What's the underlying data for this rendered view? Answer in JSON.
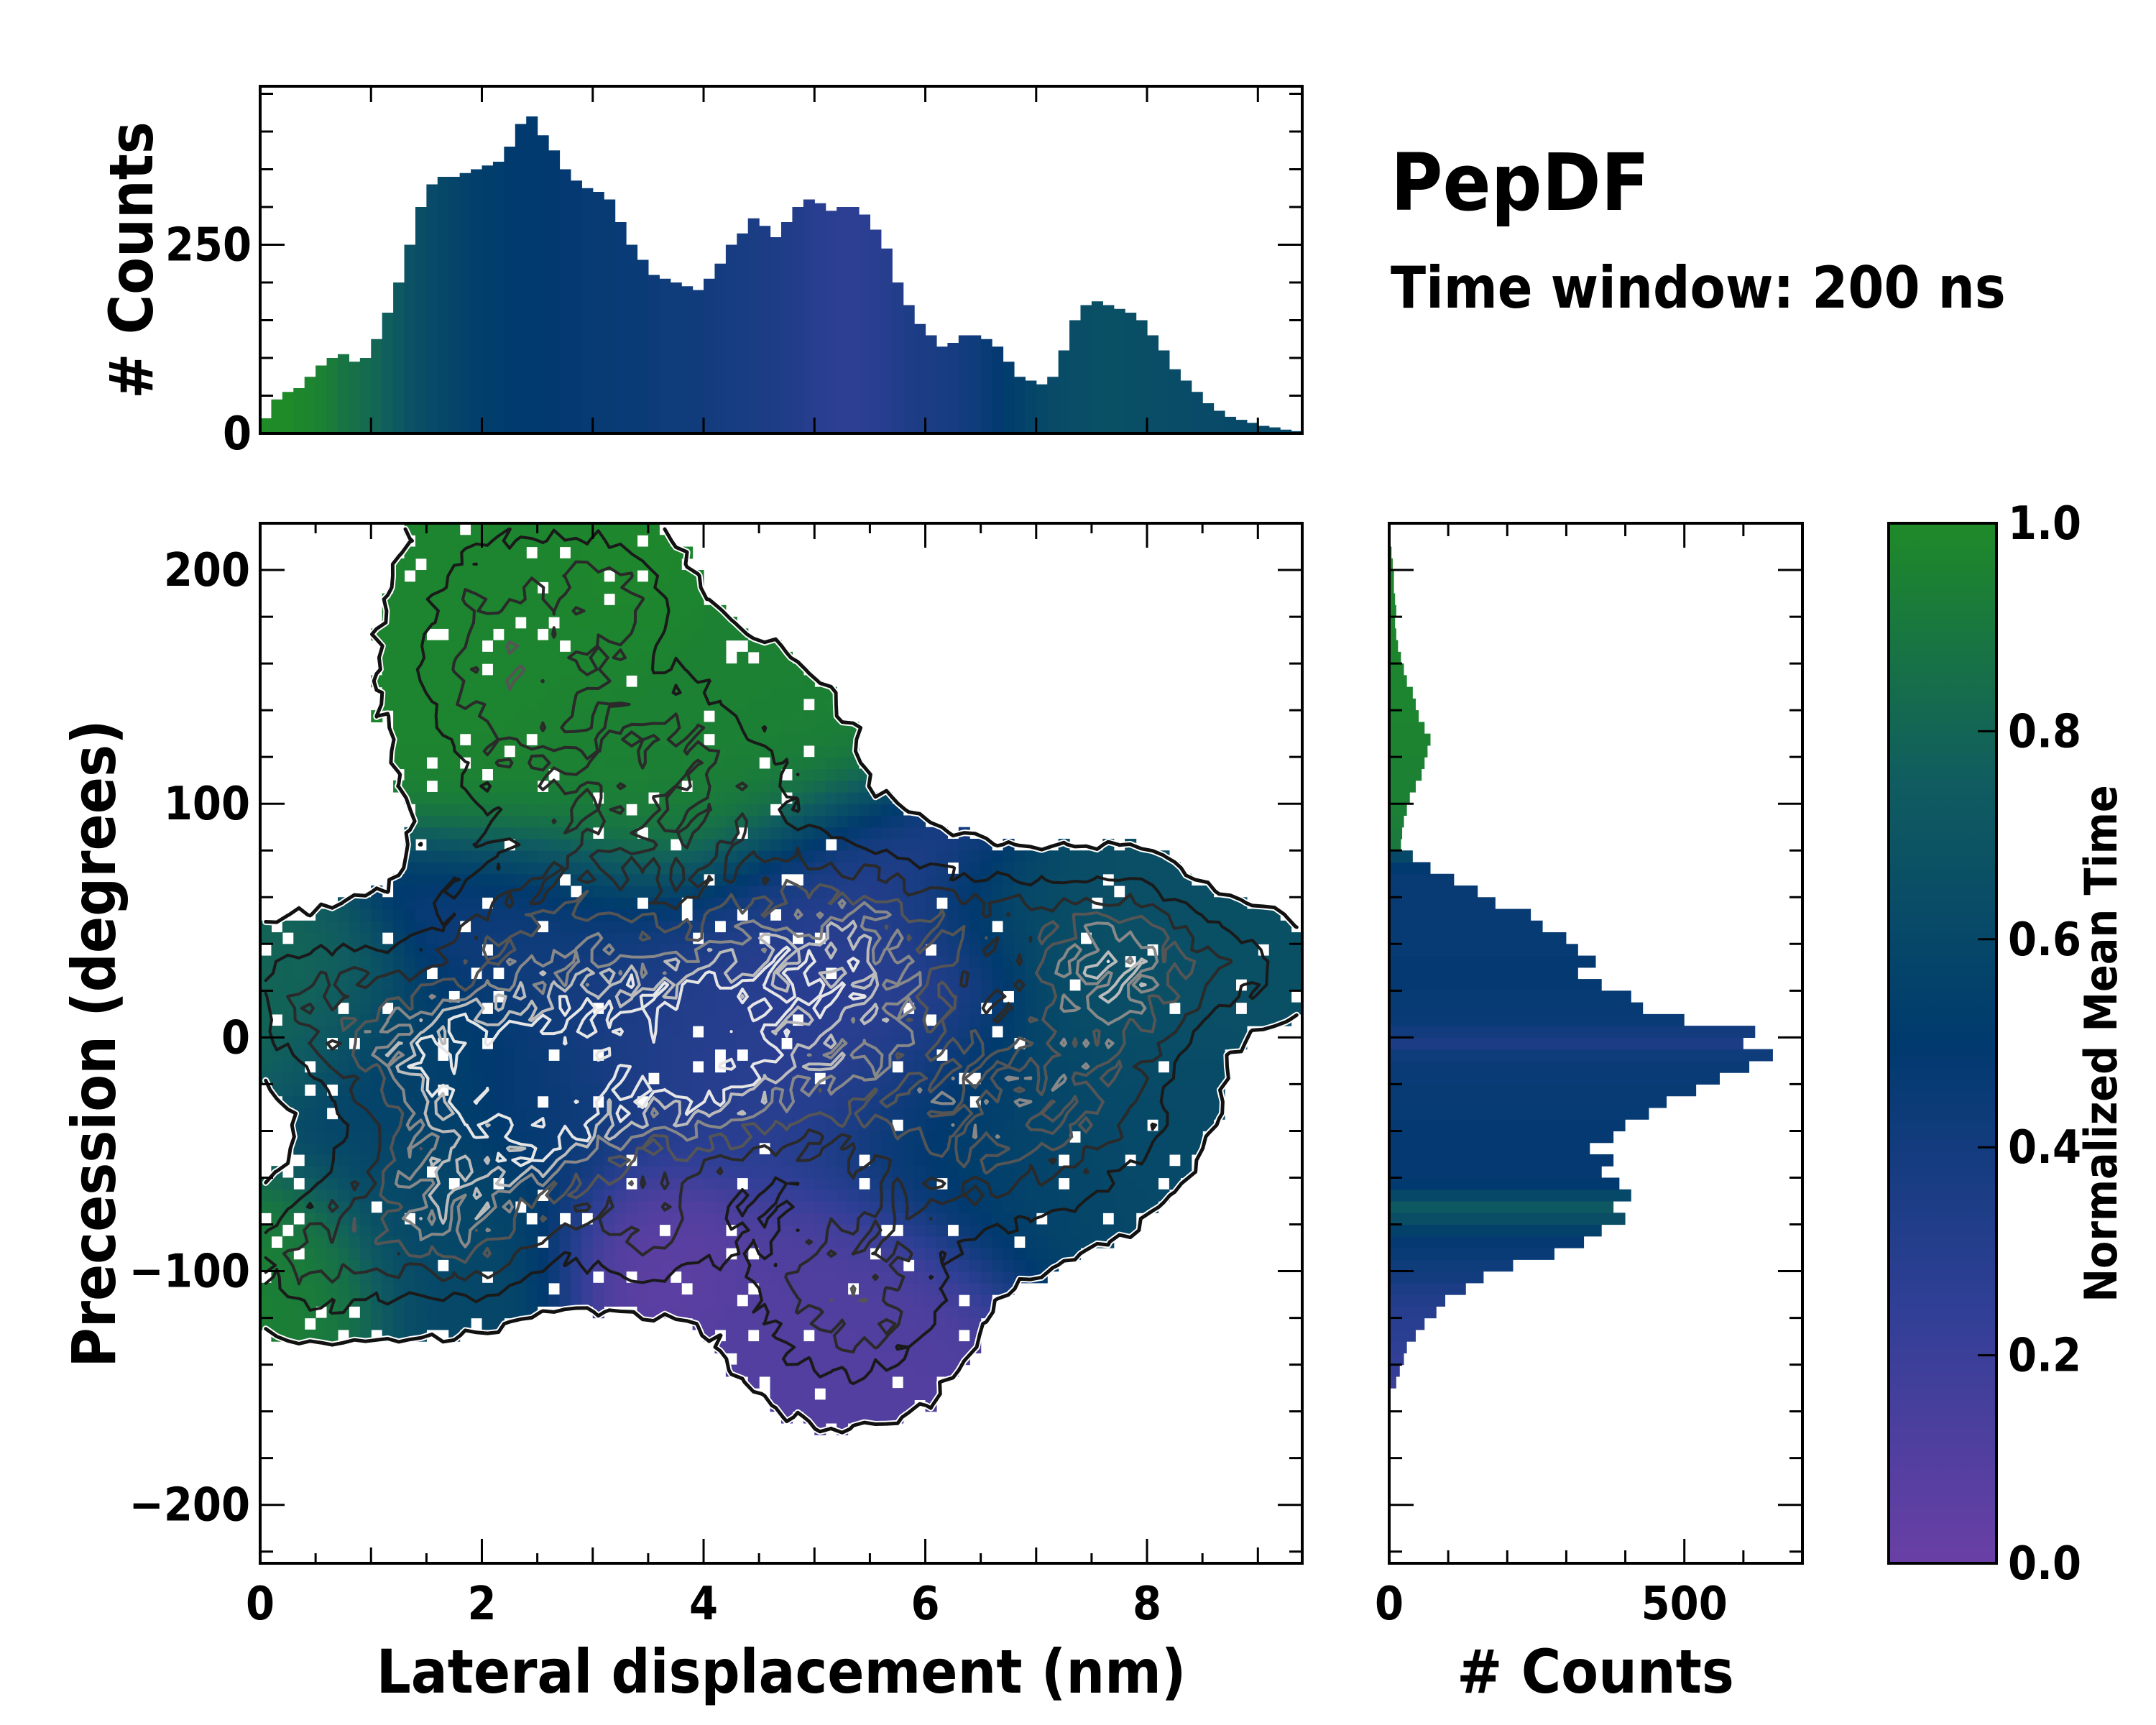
{
  "title": "PepDF",
  "subtitle": "Time window: 200 ns",
  "colors": {
    "low": "#6a3fa6",
    "mid_low": "#2f3f95",
    "mid": "#003a6e",
    "mid_high": "#105c60",
    "high": "#1f8a28",
    "contour": "#111111",
    "contour_light": "#bbbbbb"
  },
  "chart_data": [
    {
      "id": "top-histogram",
      "type": "bar",
      "title": "",
      "xlabel": "",
      "ylabel": "# Counts",
      "xlim": [
        0,
        9.4
      ],
      "ylim": [
        0,
        460
      ],
      "yticks": [
        0,
        250
      ],
      "grid": false,
      "x_bin_starts": [
        0.0,
        0.1,
        0.2,
        0.3,
        0.4,
        0.5,
        0.6,
        0.7,
        0.8,
        0.9,
        1.0,
        1.1,
        1.2,
        1.3,
        1.4,
        1.5,
        1.6,
        1.7,
        1.8,
        1.9,
        2.0,
        2.1,
        2.2,
        2.3,
        2.4,
        2.5,
        2.6,
        2.7,
        2.8,
        2.9,
        3.0,
        3.1,
        3.2,
        3.3,
        3.4,
        3.5,
        3.6,
        3.7,
        3.8,
        3.9,
        4.0,
        4.1,
        4.2,
        4.3,
        4.4,
        4.5,
        4.6,
        4.7,
        4.8,
        4.9,
        5.0,
        5.1,
        5.2,
        5.3,
        5.4,
        5.5,
        5.6,
        5.7,
        5.8,
        5.9,
        6.0,
        6.1,
        6.2,
        6.3,
        6.4,
        6.5,
        6.6,
        6.7,
        6.8,
        6.9,
        7.0,
        7.1,
        7.2,
        7.3,
        7.4,
        7.5,
        7.6,
        7.7,
        7.8,
        7.9,
        8.0,
        8.1,
        8.2,
        8.3,
        8.4,
        8.5,
        8.6,
        8.7,
        8.8,
        8.9,
        9.0,
        9.1,
        9.2,
        9.3
      ],
      "values": [
        20,
        45,
        55,
        60,
        75,
        90,
        100,
        105,
        95,
        100,
        125,
        160,
        200,
        250,
        300,
        330,
        340,
        340,
        345,
        350,
        355,
        360,
        380,
        410,
        420,
        395,
        375,
        350,
        335,
        325,
        320,
        310,
        280,
        250,
        230,
        210,
        205,
        200,
        195,
        190,
        205,
        225,
        250,
        265,
        285,
        275,
        260,
        280,
        300,
        310,
        305,
        295,
        300,
        300,
        290,
        270,
        245,
        200,
        170,
        145,
        130,
        115,
        120,
        130,
        130,
        125,
        115,
        95,
        75,
        70,
        65,
        75,
        110,
        150,
        170,
        175,
        170,
        165,
        160,
        150,
        130,
        110,
        85,
        70,
        55,
        40,
        30,
        22,
        18,
        14,
        10,
        8,
        5,
        3
      ],
      "bar_color_time": [
        1.0,
        1.0,
        1.0,
        0.98,
        0.97,
        0.95,
        0.92,
        0.88,
        0.86,
        0.83,
        0.8,
        0.76,
        0.72,
        0.68,
        0.65,
        0.62,
        0.6,
        0.58,
        0.56,
        0.54,
        0.53,
        0.52,
        0.51,
        0.5,
        0.5,
        0.49,
        0.49,
        0.48,
        0.48,
        0.47,
        0.46,
        0.46,
        0.45,
        0.45,
        0.44,
        0.43,
        0.42,
        0.42,
        0.41,
        0.41,
        0.4,
        0.39,
        0.38,
        0.37,
        0.36,
        0.35,
        0.34,
        0.33,
        0.32,
        0.3,
        0.28,
        0.27,
        0.26,
        0.26,
        0.27,
        0.28,
        0.3,
        0.32,
        0.34,
        0.35,
        0.36,
        0.37,
        0.38,
        0.4,
        0.42,
        0.45,
        0.48,
        0.52,
        0.55,
        0.58,
        0.6,
        0.62,
        0.63,
        0.64,
        0.65,
        0.66,
        0.66,
        0.66,
        0.65,
        0.65,
        0.64,
        0.64,
        0.63,
        0.63,
        0.62,
        0.62,
        0.62,
        0.61,
        0.61,
        0.61,
        0.6,
        0.6,
        0.6,
        0.6
      ]
    },
    {
      "id": "main-density-map",
      "type": "heatmap",
      "title": "",
      "xlabel": "Lateral displacement (nm)",
      "ylabel": "Precession (degrees)",
      "xlim": [
        0,
        9.4
      ],
      "ylim": [
        -225,
        220
      ],
      "xticks": [
        0,
        2,
        4,
        6,
        8
      ],
      "yticks": [
        -200,
        -100,
        0,
        100,
        200
      ],
      "grid": false,
      "blobs": [
        {
          "x": 2.2,
          "y": 165,
          "sx": 0.55,
          "sy": 38,
          "w": 1.0,
          "time": 0.97
        },
        {
          "x": 3.2,
          "y": 190,
          "sx": 0.35,
          "sy": 20,
          "w": 0.7,
          "time": 0.98
        },
        {
          "x": 3.6,
          "y": 110,
          "sx": 0.9,
          "sy": 35,
          "w": 0.9,
          "time": 0.95
        },
        {
          "x": 2.5,
          "y": 40,
          "sx": 0.7,
          "sy": 25,
          "w": 0.9,
          "time": 0.4
        },
        {
          "x": 1.7,
          "y": -10,
          "sx": 0.55,
          "sy": 20,
          "w": 2.2,
          "time": 0.55
        },
        {
          "x": 2.6,
          "y": -30,
          "sx": 0.45,
          "sy": 22,
          "w": 2.0,
          "time": 0.45
        },
        {
          "x": 3.2,
          "y": 0,
          "sx": 0.8,
          "sy": 30,
          "w": 1.4,
          "time": 0.38
        },
        {
          "x": 4.0,
          "y": -10,
          "sx": 0.6,
          "sy": 25,
          "w": 1.6,
          "time": 0.28
        },
        {
          "x": 5.0,
          "y": 10,
          "sx": 0.9,
          "sy": 35,
          "w": 1.4,
          "time": 0.25
        },
        {
          "x": 5.2,
          "y": 40,
          "sx": 0.7,
          "sy": 25,
          "w": 1.0,
          "time": 0.3
        },
        {
          "x": 0.6,
          "y": 15,
          "sx": 0.5,
          "sy": 20,
          "w": 0.8,
          "time": 0.8
        },
        {
          "x": 1.7,
          "y": -70,
          "sx": 0.6,
          "sy": 25,
          "w": 1.8,
          "time": 0.6
        },
        {
          "x": 0.5,
          "y": -95,
          "sx": 0.4,
          "sy": 18,
          "w": 0.8,
          "time": 0.95
        },
        {
          "x": 3.5,
          "y": -80,
          "sx": 0.5,
          "sy": 20,
          "w": 0.8,
          "time": 0.05
        },
        {
          "x": 5.3,
          "y": -110,
          "sx": 0.6,
          "sy": 28,
          "w": 1.0,
          "time": 0.1
        },
        {
          "x": 6.3,
          "y": -40,
          "sx": 0.7,
          "sy": 30,
          "w": 1.0,
          "time": 0.55
        },
        {
          "x": 7.7,
          "y": 30,
          "sx": 0.45,
          "sy": 22,
          "w": 1.6,
          "time": 0.66
        },
        {
          "x": 7.4,
          "y": -20,
          "sx": 0.6,
          "sy": 30,
          "w": 1.0,
          "time": 0.62
        },
        {
          "x": 8.7,
          "y": 30,
          "sx": 0.5,
          "sy": 15,
          "w": 0.6,
          "time": 0.66
        },
        {
          "x": 6.7,
          "y": 50,
          "sx": 0.6,
          "sy": 15,
          "w": 0.6,
          "time": 0.64
        }
      ]
    },
    {
      "id": "right-histogram",
      "type": "bar",
      "orientation": "horizontal",
      "title": "",
      "xlabel": "# Counts",
      "ylabel": "",
      "xlim": [
        0,
        700
      ],
      "ylim": [
        -225,
        220
      ],
      "xticks": [
        0,
        500
      ],
      "grid": false,
      "y_bin_starts": [
        -150,
        -145,
        -140,
        -135,
        -130,
        -125,
        -120,
        -115,
        -110,
        -105,
        -100,
        -95,
        -90,
        -85,
        -80,
        -75,
        -70,
        -65,
        -60,
        -55,
        -50,
        -45,
        -40,
        -35,
        -30,
        -25,
        -20,
        -15,
        -10,
        -5,
        0,
        5,
        10,
        15,
        20,
        25,
        30,
        35,
        40,
        45,
        50,
        55,
        60,
        65,
        70,
        75,
        80,
        85,
        90,
        95,
        100,
        105,
        110,
        115,
        120,
        125,
        130,
        135,
        140,
        145,
        150,
        155,
        160,
        165,
        170,
        175,
        180,
        185,
        190,
        195,
        200,
        205
      ],
      "values": [
        12,
        18,
        25,
        30,
        45,
        60,
        80,
        95,
        130,
        160,
        210,
        280,
        330,
        360,
        400,
        380,
        410,
        390,
        360,
        380,
        340,
        380,
        400,
        440,
        470,
        520,
        560,
        610,
        650,
        600,
        620,
        500,
        430,
        410,
        360,
        320,
        350,
        320,
        300,
        260,
        240,
        180,
        150,
        110,
        70,
        40,
        20,
        22,
        25,
        30,
        35,
        45,
        55,
        60,
        65,
        70,
        60,
        50,
        45,
        40,
        30,
        25,
        20,
        15,
        12,
        10,
        12,
        10,
        8,
        8,
        6,
        4
      ],
      "bar_color_time": [
        0.2,
        0.22,
        0.24,
        0.25,
        0.27,
        0.28,
        0.3,
        0.32,
        0.35,
        0.4,
        0.42,
        0.45,
        0.48,
        0.55,
        0.65,
        0.72,
        0.6,
        0.5,
        0.48,
        0.48,
        0.48,
        0.48,
        0.48,
        0.47,
        0.46,
        0.46,
        0.45,
        0.44,
        0.42,
        0.35,
        0.4,
        0.45,
        0.46,
        0.47,
        0.48,
        0.48,
        0.48,
        0.47,
        0.47,
        0.47,
        0.46,
        0.46,
        0.46,
        0.46,
        0.5,
        0.6,
        0.9,
        0.92,
        0.93,
        0.94,
        0.95,
        0.95,
        0.95,
        0.95,
        0.96,
        0.96,
        0.96,
        0.97,
        0.97,
        0.97,
        0.97,
        0.97,
        0.97,
        0.98,
        0.98,
        0.98,
        0.98,
        0.98,
        0.98,
        0.98,
        0.98,
        0.98
      ]
    },
    {
      "id": "colorbar",
      "type": "colorbar",
      "label": "Normalized Mean Time",
      "range": [
        0.0,
        1.0
      ],
      "ticks": [
        "0.0",
        "0.2",
        "0.4",
        "0.6",
        "0.8",
        "1.0"
      ]
    }
  ]
}
